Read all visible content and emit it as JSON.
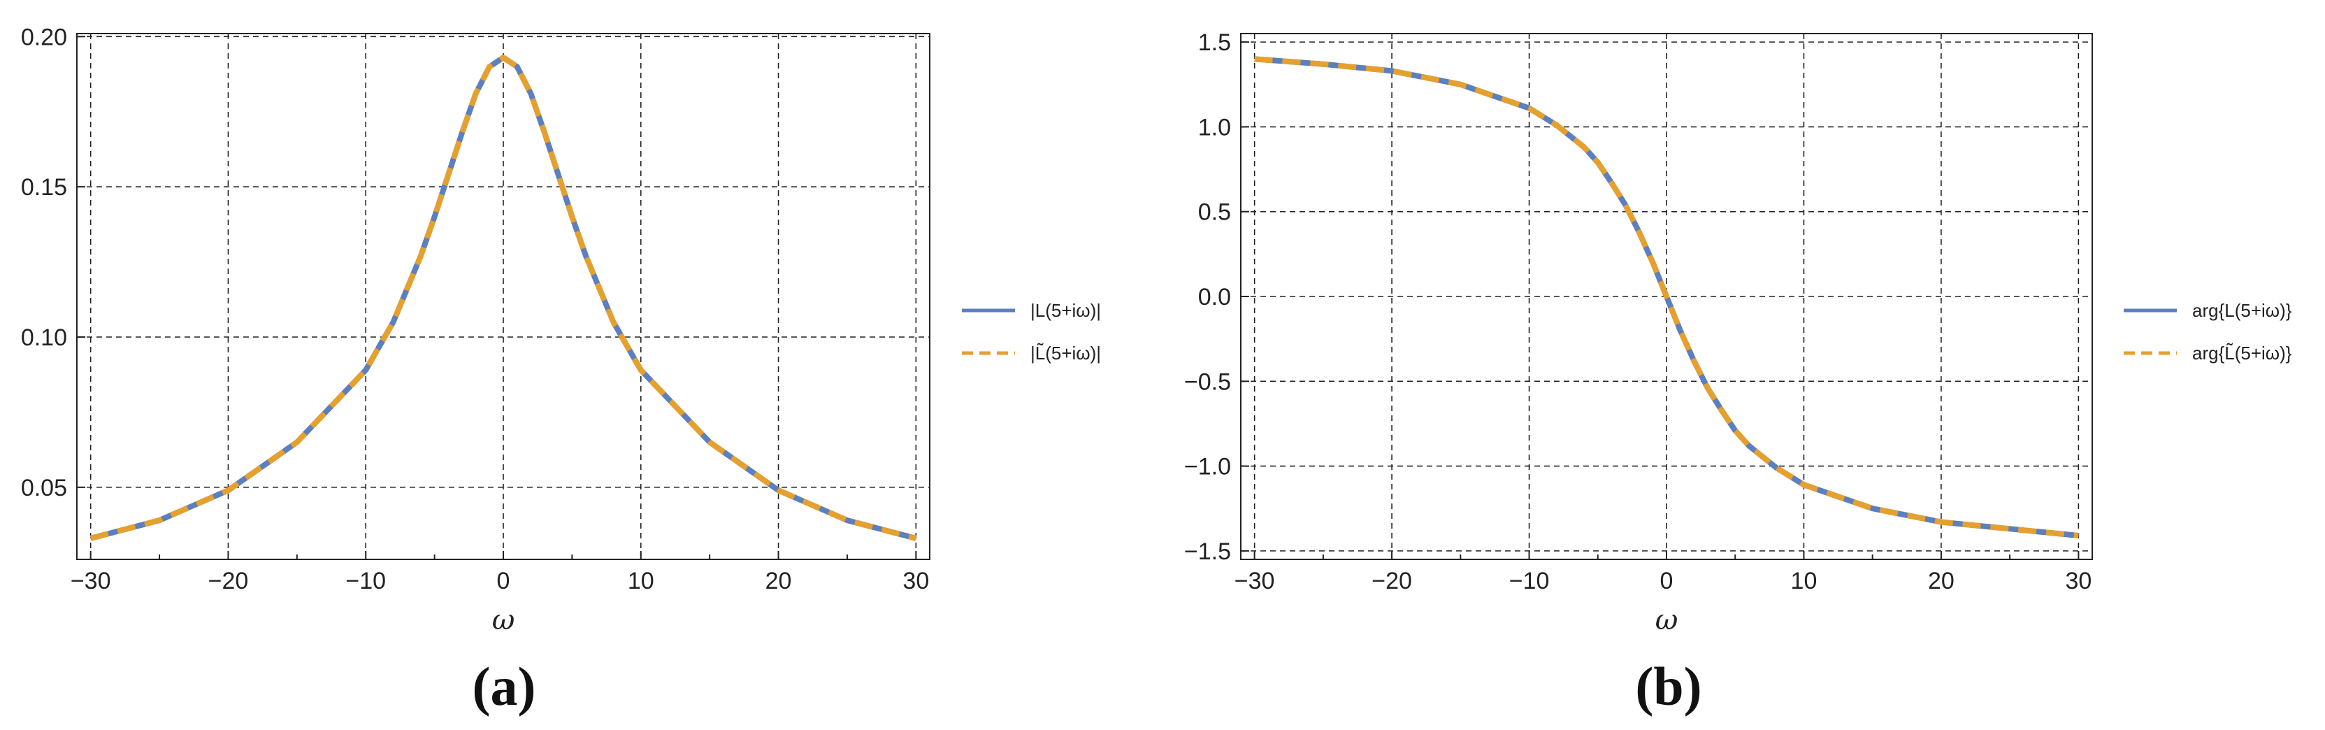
{
  "figure": {
    "panel_labels": [
      "(a)",
      "(b)"
    ],
    "legend_a": [
      "|L(5+iω)|",
      "|L̃(5+iω)|"
    ],
    "legend_b": [
      "arg{L(5+iω)}",
      "arg{L̃(5+iω)}"
    ]
  },
  "chart_data": [
    {
      "type": "line",
      "panel": "(a)",
      "xlabel": "ω",
      "ylabel": "",
      "xlim": [
        -31,
        31
      ],
      "ylim": [
        0.026,
        0.201
      ],
      "xticks": [
        -30,
        -20,
        -10,
        0,
        10,
        20,
        30
      ],
      "yticks": [
        0.05,
        0.1,
        0.15,
        0.2
      ],
      "ytick_labels": [
        "0.05",
        "0.10",
        "0.15",
        "0.20"
      ],
      "xtick_labels": [
        "−30",
        "−20",
        "−10",
        "0",
        "10",
        "20",
        "30"
      ],
      "grid": true,
      "legend_position": "right",
      "x": [
        -30,
        -25,
        -20,
        -15,
        -10,
        -8,
        -6,
        -5,
        -4,
        -3,
        -2,
        -1,
        0,
        1,
        2,
        3,
        4,
        5,
        6,
        8,
        10,
        15,
        20,
        25,
        30
      ],
      "series": [
        {
          "name": "|L(5+iω)|",
          "color": "#5b7fbf",
          "dash": "solid",
          "values": [
            0.033,
            0.039,
            0.049,
            0.065,
            0.089,
            0.105,
            0.127,
            0.14,
            0.154,
            0.168,
            0.181,
            0.19,
            0.193,
            0.19,
            0.181,
            0.168,
            0.154,
            0.14,
            0.127,
            0.105,
            0.089,
            0.065,
            0.049,
            0.039,
            0.033
          ]
        },
        {
          "name": "|L̃(5+iω)|",
          "color": "#e5a02e",
          "dash": "dashed",
          "values": [
            0.033,
            0.039,
            0.049,
            0.065,
            0.089,
            0.105,
            0.127,
            0.14,
            0.154,
            0.168,
            0.181,
            0.19,
            0.193,
            0.19,
            0.181,
            0.168,
            0.154,
            0.14,
            0.127,
            0.105,
            0.089,
            0.065,
            0.049,
            0.039,
            0.033
          ]
        }
      ]
    },
    {
      "type": "line",
      "panel": "(b)",
      "xlabel": "ω",
      "ylabel": "",
      "xlim": [
        -31,
        31
      ],
      "ylim": [
        -1.55,
        1.55
      ],
      "xticks": [
        -30,
        -20,
        -10,
        0,
        10,
        20,
        30
      ],
      "yticks": [
        -1.5,
        -1.0,
        -0.5,
        0.0,
        0.5,
        1.0,
        1.5
      ],
      "ytick_labels": [
        "−1.5",
        "−1.0",
        "−0.5",
        "0.0",
        "0.5",
        "1.0",
        "1.5"
      ],
      "xtick_labels": [
        "−30",
        "−20",
        "−10",
        "0",
        "10",
        "20",
        "30"
      ],
      "grid": true,
      "legend_position": "right",
      "x": [
        -30,
        -25,
        -20,
        -15,
        -10,
        -8,
        -6,
        -5,
        -4,
        -3,
        -2,
        -1,
        0,
        1,
        2,
        3,
        4,
        5,
        6,
        8,
        10,
        15,
        20,
        25,
        30
      ],
      "series": [
        {
          "name": "arg{L(5+iω)}",
          "color": "#5b7fbf",
          "dash": "solid",
          "values": [
            1.4,
            1.37,
            1.33,
            1.25,
            1.11,
            1.01,
            0.88,
            0.79,
            0.67,
            0.54,
            0.38,
            0.2,
            0.0,
            -0.2,
            -0.38,
            -0.54,
            -0.67,
            -0.79,
            -0.88,
            -1.01,
            -1.11,
            -1.25,
            -1.33,
            -1.37,
            -1.41
          ]
        },
        {
          "name": "arg{L̃(5+iω)}",
          "color": "#e5a02e",
          "dash": "dashed",
          "values": [
            1.4,
            1.37,
            1.33,
            1.25,
            1.11,
            1.01,
            0.88,
            0.79,
            0.67,
            0.54,
            0.38,
            0.2,
            0.0,
            -0.2,
            -0.38,
            -0.54,
            -0.67,
            -0.79,
            -0.88,
            -1.01,
            -1.11,
            -1.25,
            -1.33,
            -1.37,
            -1.41
          ]
        }
      ]
    }
  ]
}
